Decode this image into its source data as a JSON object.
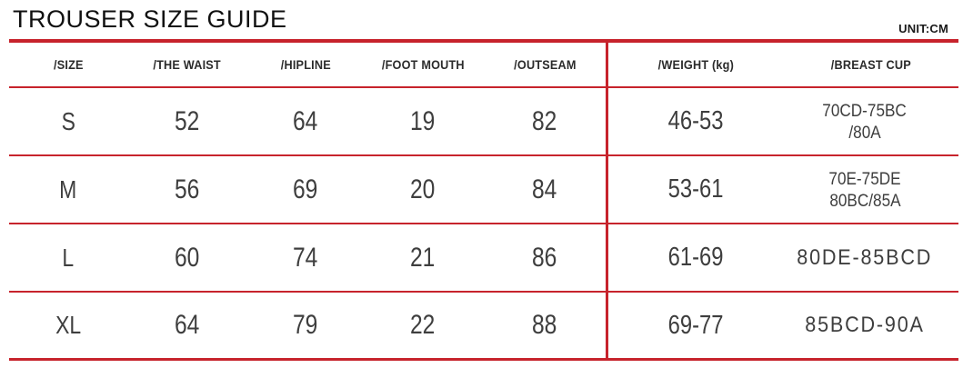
{
  "title": "TROUSER SIZE GUIDE",
  "unit_label": "UNIT:CM",
  "colors": {
    "accent_red": "#c7232c",
    "title_text": "#111111",
    "header_text": "#2b2b2b",
    "value_text": "#3e3e3e"
  },
  "table": {
    "columns": [
      {
        "key": "size",
        "label": "/SIZE"
      },
      {
        "key": "waist",
        "label": "/THE WAIST"
      },
      {
        "key": "hipline",
        "label": "/HIPLINE"
      },
      {
        "key": "foot_mouth",
        "label": "/FOOT MOUTH"
      },
      {
        "key": "outseam",
        "label": "/OUTSEAM"
      },
      {
        "key": "weight",
        "label": "/WEIGHT (kg)"
      },
      {
        "key": "breast_cup",
        "label": "/BREAST CUP"
      }
    ],
    "rows": [
      {
        "size": "S",
        "waist": "52",
        "hipline": "64",
        "foot_mouth": "19",
        "outseam": "82",
        "weight": "46-53",
        "breast_cup_lines": [
          "70CD-75BC",
          "/80A"
        ]
      },
      {
        "size": "M",
        "waist": "56",
        "hipline": "69",
        "foot_mouth": "20",
        "outseam": "84",
        "weight": "53-61",
        "breast_cup_lines": [
          "70E-75DE",
          "80BC/85A"
        ]
      },
      {
        "size": "L",
        "waist": "60",
        "hipline": "74",
        "foot_mouth": "21",
        "outseam": "86",
        "weight": "61-69",
        "breast_cup_lines": [
          "80DE-85BCD"
        ]
      },
      {
        "size": "XL",
        "waist": "64",
        "hipline": "79",
        "foot_mouth": "22",
        "outseam": "88",
        "weight": "69-77",
        "breast_cup_lines": [
          "85BCD-90A"
        ]
      }
    ]
  }
}
